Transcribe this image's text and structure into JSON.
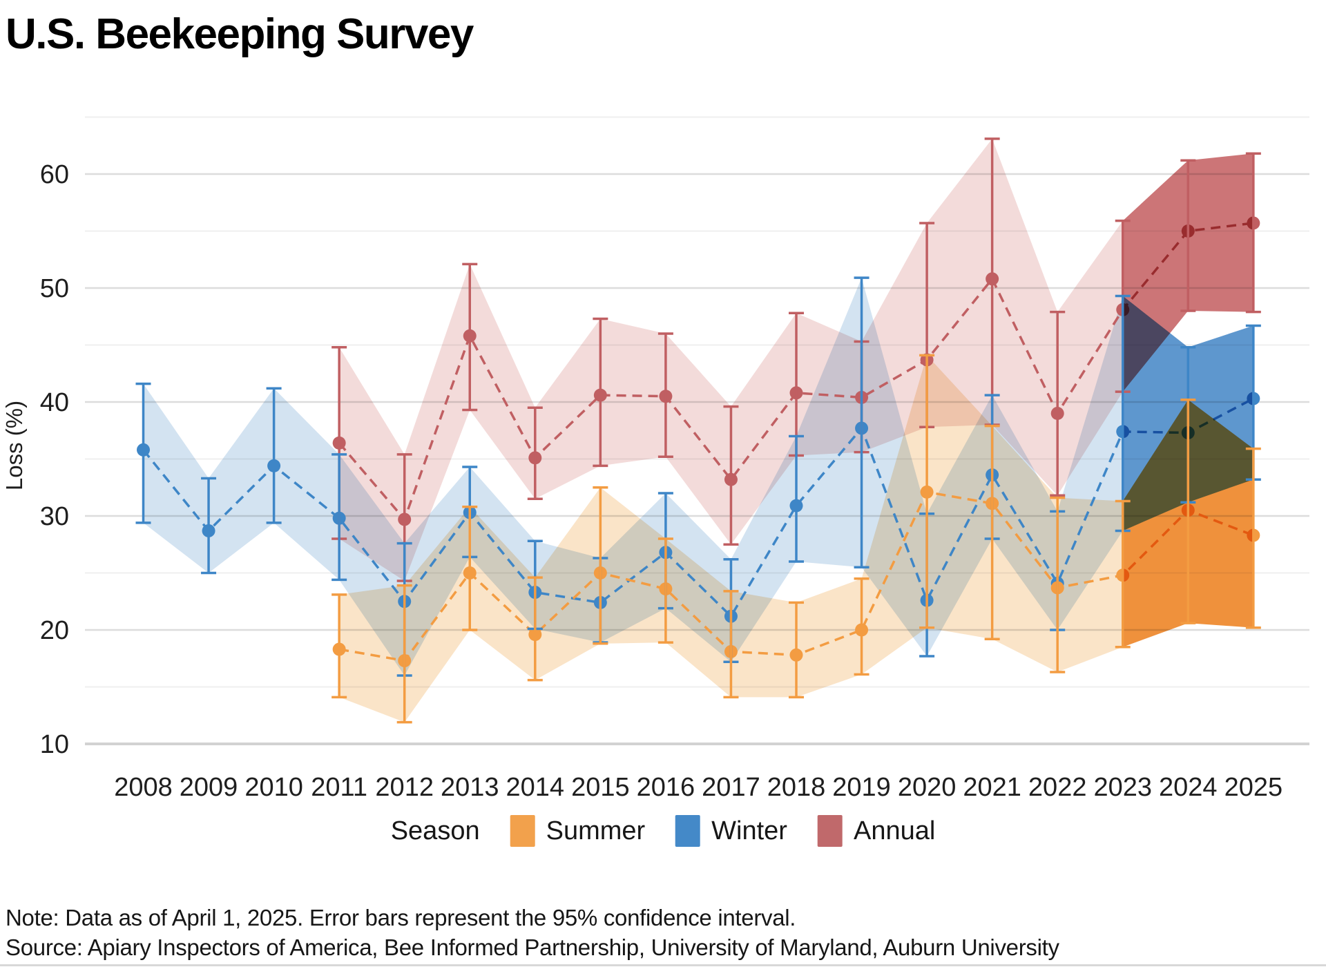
{
  "header": {
    "title": "U.S. Beekeeping Survey"
  },
  "legend": {
    "title": "Season",
    "items": [
      {
        "label": "Summer",
        "color": "#F2A14C"
      },
      {
        "label": "Winter",
        "color": "#4489C8"
      },
      {
        "label": "Annual",
        "color": "#C0696B"
      }
    ]
  },
  "footnotes": {
    "note": "Note: Data as of April 1, 2025. Error bars represent the 95% confidence interval.",
    "source": "Source: Apiary Inspectors of America, Bee Informed Partnership, University of Maryland, Auburn University"
  },
  "chart_data": {
    "type": "line",
    "title": "U.S. Beekeeping Survey",
    "xlabel": "",
    "ylabel": "Loss (%)",
    "x_years": [
      2008,
      2009,
      2010,
      2011,
      2012,
      2013,
      2014,
      2015,
      2016,
      2017,
      2018,
      2019,
      2020,
      2021,
      2022,
      2023,
      2024,
      2025
    ],
    "y_ticks_major": [
      10,
      20,
      30,
      40,
      50,
      60
    ],
    "y_ticks_minor": [
      15,
      25,
      35,
      45,
      55,
      65
    ],
    "axis_range": [
      10,
      65
    ],
    "grid": true,
    "legend_position": "bottom",
    "line_style": "dashed",
    "error_bars": "95% confidence interval",
    "highlight_from_year": 2023,
    "series": [
      {
        "name": "Annual",
        "color": "#C05F62",
        "band_light": "#F3DBDA",
        "band_dark": "#CC7577",
        "points": [
          [
            2011,
            36.4,
            28.0,
            44.8
          ],
          [
            2012,
            29.7,
            24.3,
            35.4
          ],
          [
            2013,
            45.8,
            39.3,
            52.1
          ],
          [
            2014,
            35.1,
            31.5,
            39.5
          ],
          [
            2015,
            40.6,
            34.4,
            47.3
          ],
          [
            2016,
            40.5,
            35.2,
            46.0
          ],
          [
            2017,
            33.2,
            27.5,
            39.6
          ],
          [
            2018,
            40.8,
            35.3,
            47.8
          ],
          [
            2019,
            40.4,
            35.6,
            45.3
          ],
          [
            2020,
            43.7,
            37.8,
            55.7
          ],
          [
            2021,
            50.8,
            38.0,
            63.1
          ],
          [
            2022,
            39.0,
            31.8,
            47.9
          ],
          [
            2023,
            48.1,
            40.9,
            55.9
          ],
          [
            2024,
            55.0,
            48.0,
            61.2
          ],
          [
            2025,
            55.7,
            47.9,
            61.8
          ]
        ]
      },
      {
        "name": "Winter",
        "color": "#3E86C7",
        "band_light": "#D3E3F1",
        "band_dark": "#5E97CE",
        "points": [
          [
            2008,
            35.8,
            29.4,
            41.6
          ],
          [
            2009,
            28.7,
            25.0,
            33.3
          ],
          [
            2010,
            34.4,
            29.4,
            41.2
          ],
          [
            2011,
            29.8,
            24.4,
            35.4
          ],
          [
            2012,
            22.5,
            16.0,
            27.6
          ],
          [
            2013,
            30.3,
            26.4,
            34.3
          ],
          [
            2014,
            23.3,
            20.1,
            27.8
          ],
          [
            2015,
            22.4,
            18.9,
            26.3
          ],
          [
            2016,
            26.8,
            21.9,
            32.0
          ],
          [
            2017,
            21.2,
            17.2,
            26.2
          ],
          [
            2018,
            30.9,
            26.0,
            37.0
          ],
          [
            2019,
            37.7,
            25.5,
            50.9
          ],
          [
            2020,
            22.6,
            17.7,
            30.2
          ],
          [
            2021,
            33.6,
            28.0,
            40.6
          ],
          [
            2022,
            24.1,
            20.0,
            30.4
          ],
          [
            2023,
            37.4,
            28.7,
            49.3
          ],
          [
            2024,
            37.3,
            31.2,
            44.8
          ],
          [
            2025,
            40.3,
            33.2,
            46.7
          ]
        ]
      },
      {
        "name": "Summer",
        "color": "#F39C42",
        "band_light": "#FAE4C8",
        "band_dark": "#EF913C",
        "points": [
          [
            2011,
            18.3,
            14.1,
            23.1
          ],
          [
            2012,
            17.3,
            11.9,
            23.9
          ],
          [
            2013,
            25.0,
            20.0,
            30.8
          ],
          [
            2014,
            19.6,
            15.6,
            24.6
          ],
          [
            2015,
            25.0,
            18.8,
            32.5
          ],
          [
            2016,
            23.6,
            18.9,
            28.0
          ],
          [
            2017,
            18.1,
            14.1,
            23.4
          ],
          [
            2018,
            17.8,
            14.1,
            22.4
          ],
          [
            2019,
            20.0,
            16.1,
            24.5
          ],
          [
            2020,
            32.1,
            20.2,
            44.1
          ],
          [
            2021,
            31.1,
            19.2,
            37.9
          ],
          [
            2022,
            23.7,
            16.3,
            31.6
          ],
          [
            2023,
            24.8,
            18.5,
            31.3
          ],
          [
            2024,
            30.5,
            20.6,
            40.2
          ],
          [
            2025,
            28.3,
            20.2,
            35.9
          ]
        ]
      }
    ]
  }
}
